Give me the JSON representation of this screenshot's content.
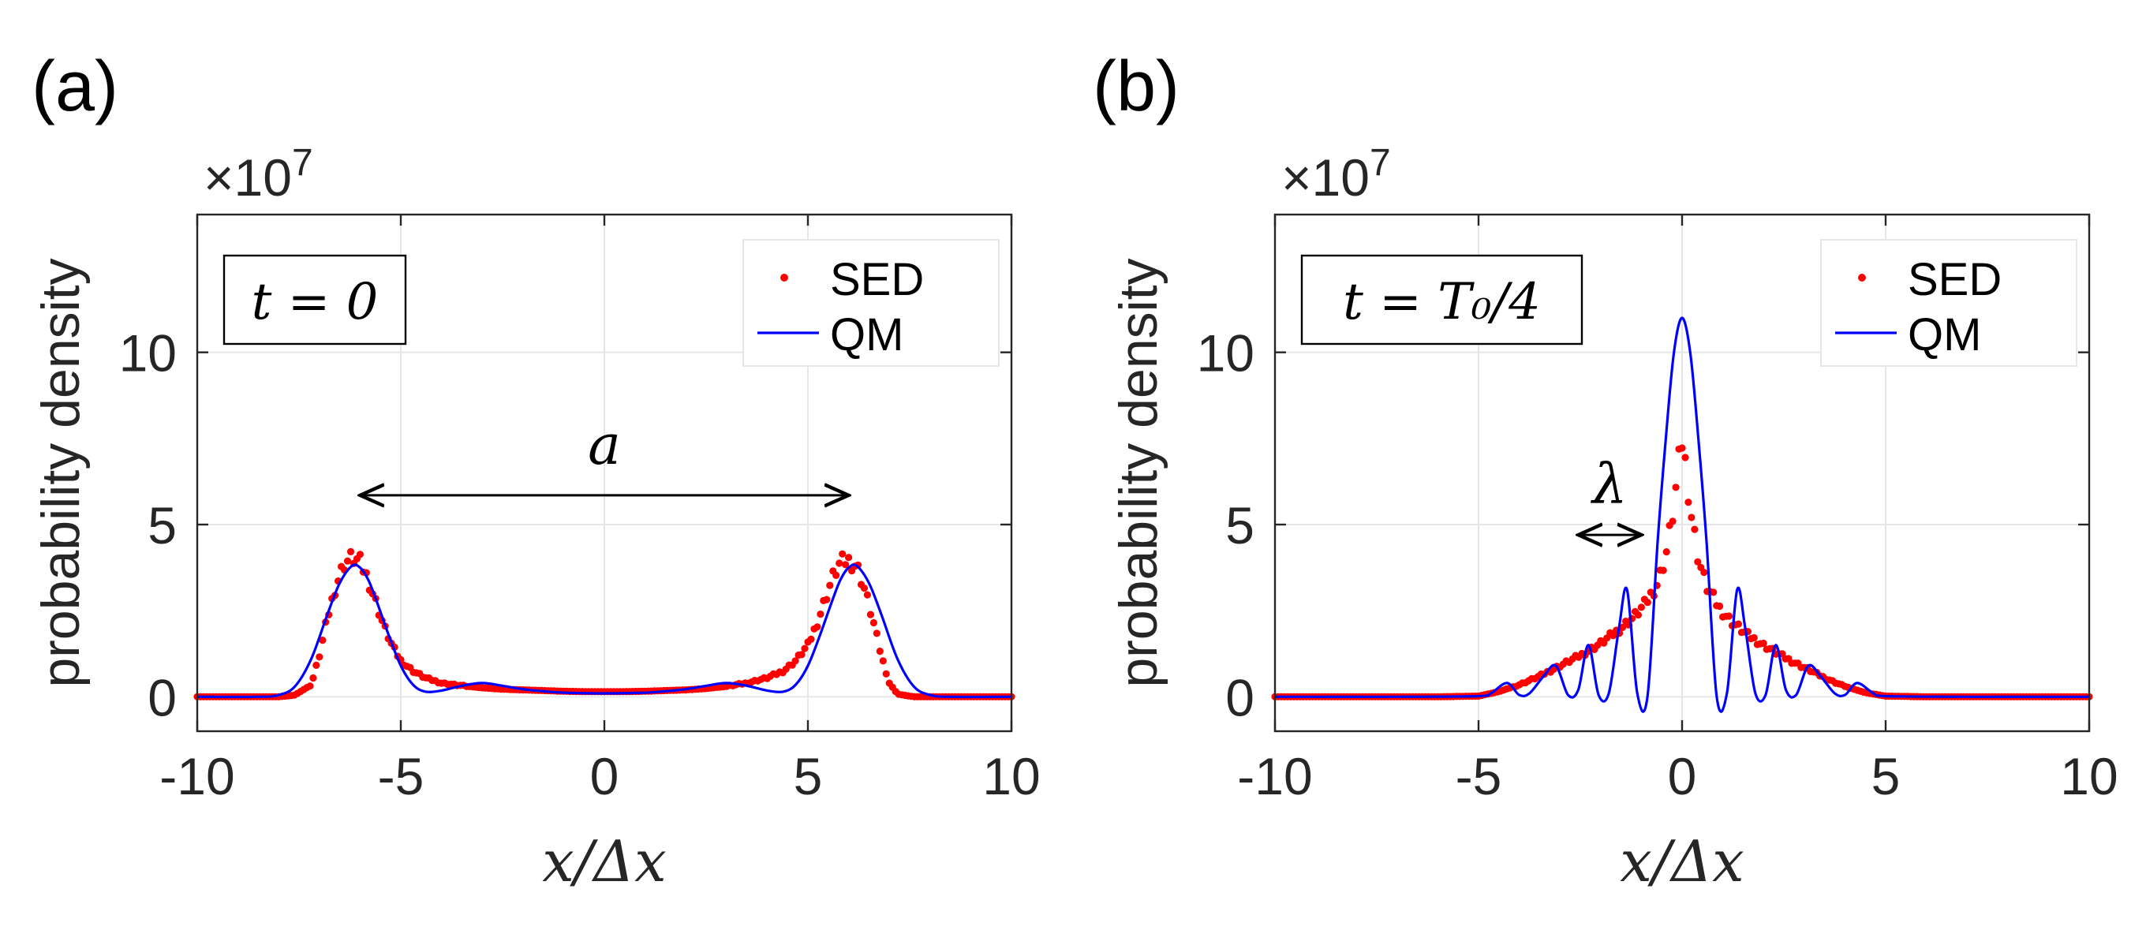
{
  "chart_data": [
    {
      "type": "scatter",
      "panel_label": "(a)",
      "exponent_label": "×10",
      "exponent_power": "7",
      "ylabel": "probability density",
      "xlabel": "x/Δx",
      "xlim": [
        -10,
        10
      ],
      "ylim": [
        -1,
        14
      ],
      "xticks": [
        -10,
        -5,
        0,
        5,
        10
      ],
      "yticks": [
        0,
        5,
        10
      ],
      "xtick_labels": [
        "-10",
        "-5",
        "0",
        "5",
        "10"
      ],
      "ytick_labels": [
        "0",
        "5",
        "10"
      ],
      "grid": true,
      "time_label": "t = 0",
      "legend": {
        "position": "top-right",
        "entries": [
          "SED",
          "QM"
        ]
      },
      "annotation": {
        "text": "a",
        "type": "double-arrow",
        "x_from": -6,
        "x_to": 6,
        "y": 5.85
      },
      "series": [
        {
          "name": "SED",
          "style": "dots",
          "color": "#ff0000",
          "x": [
            -10,
            -9,
            -8,
            -7.6,
            -7.2,
            -7,
            -6.8,
            -6.6,
            -6.4,
            -6.2,
            -6,
            -5.8,
            -5.6,
            -5.4,
            -5.2,
            -5,
            -4.7,
            -4.4,
            -4,
            -3.5,
            -3,
            -2.5,
            -2,
            -1.5,
            -1,
            -0.5,
            0,
            0.5,
            1,
            1.5,
            2,
            2.5,
            3,
            3.5,
            4,
            4.4,
            4.7,
            5,
            5.2,
            5.4,
            5.6,
            5.8,
            6,
            6.2,
            6.4,
            6.6,
            6.8,
            7,
            7.2,
            7.6,
            8,
            9,
            10
          ],
          "y": [
            0,
            0,
            0,
            0.05,
            0.35,
            1.2,
            2.3,
            3.2,
            3.85,
            4.05,
            3.9,
            3.4,
            2.7,
            2.0,
            1.45,
            1.05,
            0.75,
            0.55,
            0.4,
            0.32,
            0.26,
            0.22,
            0.2,
            0.18,
            0.16,
            0.15,
            0.15,
            0.15,
            0.16,
            0.18,
            0.2,
            0.24,
            0.3,
            0.4,
            0.55,
            0.75,
            1.05,
            1.5,
            2.05,
            2.75,
            3.45,
            3.9,
            3.95,
            3.8,
            3.1,
            2.2,
            1.2,
            0.4,
            0.08,
            0,
            0,
            0,
            0
          ]
        },
        {
          "name": "QM",
          "style": "line",
          "color": "#0000ff",
          "x": [
            -10,
            -8.5,
            -8,
            -7.6,
            -7.2,
            -6.8,
            -6.5,
            -6.2,
            -6,
            -5.8,
            -5.6,
            -5.3,
            -5,
            -4.7,
            -4.4,
            -4,
            -3.5,
            -3,
            -2.5,
            -2,
            -1.5,
            -1,
            0,
            1,
            1.5,
            2,
            2.5,
            3,
            3.5,
            4,
            4.4,
            4.7,
            5,
            5.3,
            5.6,
            5.8,
            6,
            6.2,
            6.5,
            6.8,
            7.2,
            7.6,
            8,
            8.5,
            10
          ],
          "y": [
            0,
            0,
            0.05,
            0.3,
            1.1,
            2.4,
            3.3,
            3.8,
            3.75,
            3.4,
            2.8,
            1.8,
            0.9,
            0.35,
            0.15,
            0.18,
            0.32,
            0.4,
            0.32,
            0.22,
            0.16,
            0.12,
            0.1,
            0.12,
            0.16,
            0.22,
            0.32,
            0.4,
            0.32,
            0.18,
            0.15,
            0.35,
            0.9,
            1.8,
            2.8,
            3.4,
            3.75,
            3.8,
            3.3,
            2.4,
            1.1,
            0.3,
            0.05,
            0,
            0
          ]
        }
      ]
    },
    {
      "type": "scatter",
      "panel_label": "(b)",
      "exponent_label": "×10",
      "exponent_power": "7",
      "ylabel": "probability density",
      "xlabel": "x/Δx",
      "xlim": [
        -10,
        10
      ],
      "ylim": [
        -1,
        14
      ],
      "xticks": [
        -10,
        -5,
        0,
        5,
        10
      ],
      "yticks": [
        0,
        5,
        10
      ],
      "xtick_labels": [
        "-10",
        "-5",
        "0",
        "5",
        "10"
      ],
      "ytick_labels": [
        "0",
        "5",
        "10"
      ],
      "grid": true,
      "time_label": "t = T₀/4",
      "legend": {
        "position": "top-right",
        "entries": [
          "SED",
          "QM"
        ]
      },
      "annotation": {
        "text": "λ",
        "type": "double-arrow",
        "x_from": -2.55,
        "x_to": -1.0,
        "y": 4.7
      },
      "series": [
        {
          "name": "SED",
          "style": "dots",
          "color": "#ff0000",
          "x": [
            -10,
            -8,
            -6,
            -5,
            -4.5,
            -4,
            -3.5,
            -3,
            -2.5,
            -2,
            -1.6,
            -1.2,
            -0.9,
            -0.6,
            -0.4,
            -0.2,
            -0.1,
            0,
            0.1,
            0.2,
            0.4,
            0.6,
            0.9,
            1.2,
            1.6,
            2,
            2.5,
            3,
            3.5,
            4,
            4.5,
            5,
            6,
            8,
            10
          ],
          "y": [
            0,
            0,
            0,
            0.02,
            0.15,
            0.35,
            0.6,
            0.9,
            1.2,
            1.55,
            1.9,
            2.3,
            2.7,
            3.3,
            4.1,
            5.5,
            6.6,
            7.4,
            6.6,
            5.5,
            4.0,
            3.2,
            2.6,
            2.2,
            1.8,
            1.5,
            1.15,
            0.85,
            0.55,
            0.3,
            0.12,
            0.02,
            0,
            0,
            0
          ]
        },
        {
          "name": "QM",
          "style": "line",
          "color": "#0000ff",
          "x": [
            -10,
            -7,
            -5,
            -4.7,
            -4.3,
            -4,
            -3.75,
            -3.4,
            -3.1,
            -2.8,
            -2.55,
            -2.3,
            -2.05,
            -1.8,
            -1.55,
            -1.35,
            -1.1,
            -0.85,
            -0.6,
            -0.4,
            -0.2,
            0,
            0.2,
            0.4,
            0.6,
            0.85,
            1.1,
            1.35,
            1.55,
            1.8,
            2.05,
            2.3,
            2.55,
            2.8,
            3.1,
            3.4,
            3.75,
            4,
            4.3,
            4.7,
            5,
            7,
            10
          ],
          "y": [
            0,
            0,
            0.02,
            0.1,
            0.4,
            0.05,
            0.1,
            0.6,
            0.9,
            0.05,
            0.2,
            1.5,
            0.05,
            0.1,
            2.0,
            3.1,
            0.1,
            0.0,
            4.5,
            7.5,
            10.0,
            11.0,
            10.0,
            7.5,
            4.5,
            0.0,
            0.1,
            3.1,
            2.0,
            0.1,
            0.05,
            1.5,
            0.2,
            0.05,
            0.9,
            0.6,
            0.1,
            0.05,
            0.4,
            0.1,
            0.02,
            0,
            0
          ]
        }
      ]
    }
  ]
}
